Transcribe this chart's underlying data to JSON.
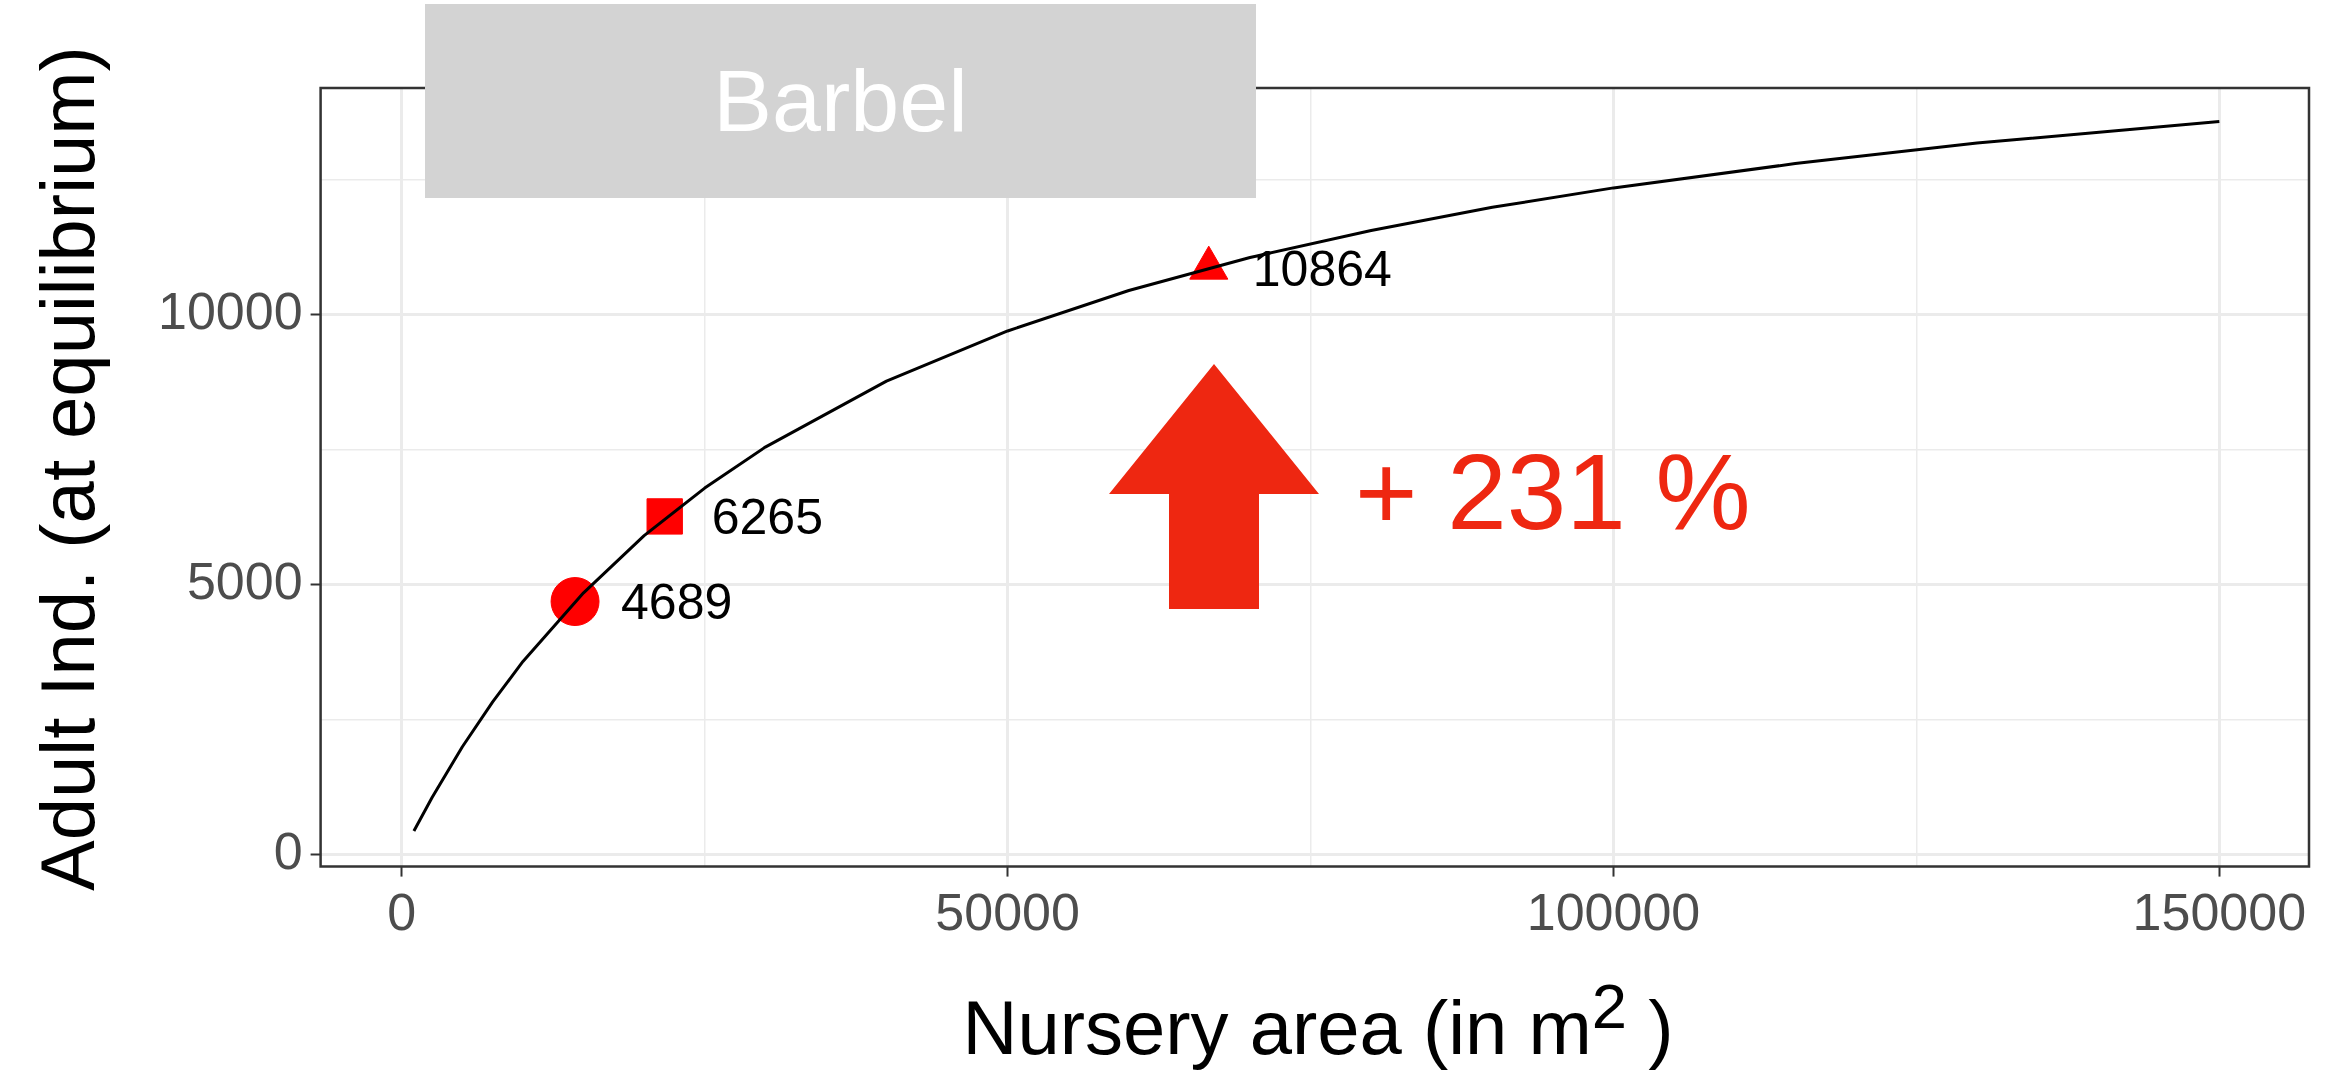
{
  "chart_data": {
    "type": "line",
    "title": "Barbel",
    "xlabel": "Nursery area (in  m$^{2}$ )",
    "ylabel": "Adult Ind. (at equilibrium)",
    "xlim": [
      -6700,
      157400
    ],
    "ylim": [
      -220,
      14200
    ],
    "xticks": [
      0,
      {
        "value": 25000,
        "label": null
      },
      50000,
      {
        "value": 75000,
        "label": null
      },
      100000,
      {
        "value": 125000,
        "label": null
      },
      150000
    ],
    "yticks": [
      0,
      {
        "value": 2500,
        "label": null
      },
      5000,
      {
        "value": 7500,
        "label": null
      },
      10000,
      {
        "value": 12500,
        "label": null
      }
    ],
    "grid": true,
    "legend": false,
    "annotations": [
      "+ 231 %"
    ],
    "series": [
      {
        "type": "line",
        "color": "#000000",
        "marker": "none",
        "x": [
          1000,
          2500,
          5000,
          7500,
          10000,
          15000,
          20000,
          25000,
          30000,
          40000,
          50000,
          60000,
          70000,
          80000,
          90000,
          100000,
          115000,
          130000,
          150000
        ],
        "values": [
          440,
          1060,
          2000,
          2830,
          3580,
          4850,
          5910,
          6790,
          7550,
          8770,
          9700,
          10450,
          11060,
          11560,
          11990,
          12350,
          12800,
          13180,
          13580
        ]
      },
      {
        "type": "scatter",
        "color": "#ff0000",
        "marker": "circle",
        "x": [
          14300
        ],
        "values": [
          4689
        ],
        "value_labels": [
          "4689"
        ]
      },
      {
        "type": "scatter",
        "color": "#ff0000",
        "marker": "square",
        "x": [
          21700
        ],
        "values": [
          6265
        ],
        "value_labels": [
          "6265"
        ]
      },
      {
        "type": "scatter",
        "color": "#ff0000",
        "marker": "triangle",
        "x": [
          66600
        ],
        "values": [
          10864
        ],
        "value_labels": [
          "10864"
        ]
      }
    ]
  }
}
